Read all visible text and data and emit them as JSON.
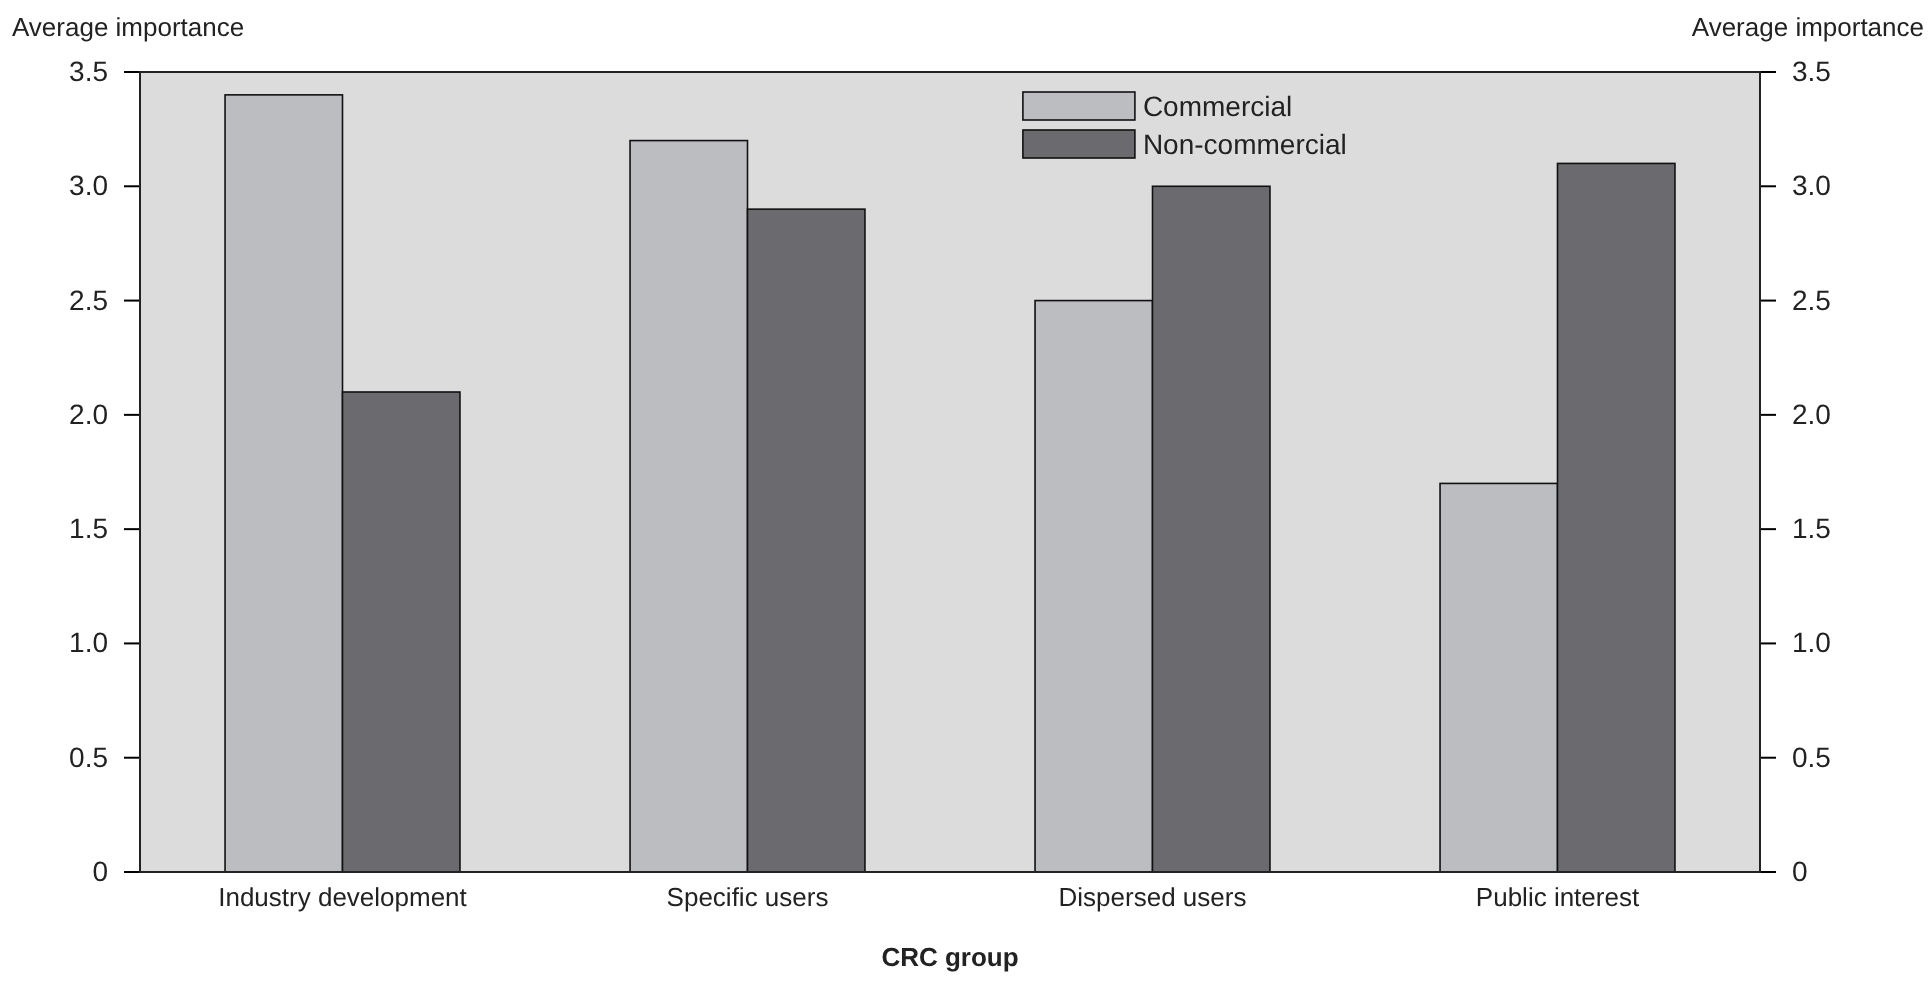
{
  "chart_data": {
    "type": "bar",
    "xlabel": "CRC group",
    "ylabel": "Average importance",
    "y2label": "Average importance",
    "categories": [
      "Industry development",
      "Specific users",
      "Dispersed users",
      "Public interest"
    ],
    "series": [
      {
        "name": "Commercial",
        "color": "#bcbdc0",
        "values": [
          3.4,
          3.2,
          2.5,
          1.7
        ]
      },
      {
        "name": "Non-commercial",
        "color": "#6b6b6f",
        "values": [
          2.1,
          2.9,
          3.0,
          3.1
        ]
      }
    ],
    "ylim": [
      0,
      3.5
    ],
    "yticks": [
      0,
      {
        "value": 0.5,
        "label": "0.5"
      },
      {
        "value": 1,
        "label": "1.0"
      },
      {
        "value": 1.5,
        "label": "1.5"
      },
      {
        "value": 2,
        "label": "2.0"
      },
      {
        "value": 2.5,
        "label": "2.5"
      },
      {
        "value": 3,
        "label": "3.0"
      },
      {
        "value": 3.5,
        "label": "3.5"
      }
    ],
    "y2lim": [
      0,
      3.5
    ],
    "y2ticks": [
      0,
      {
        "value": 0.5,
        "label": "0.5"
      },
      {
        "value": 1,
        "label": "1.0"
      },
      {
        "value": 1.5,
        "label": "1.5"
      },
      {
        "value": 2,
        "label": "2.0"
      },
      {
        "value": 2.5,
        "label": "2.5"
      },
      {
        "value": 3,
        "label": "3.0"
      },
      {
        "value": 3.5,
        "label": "3.5"
      }
    ],
    "legend": "top",
    "grid": false
  }
}
